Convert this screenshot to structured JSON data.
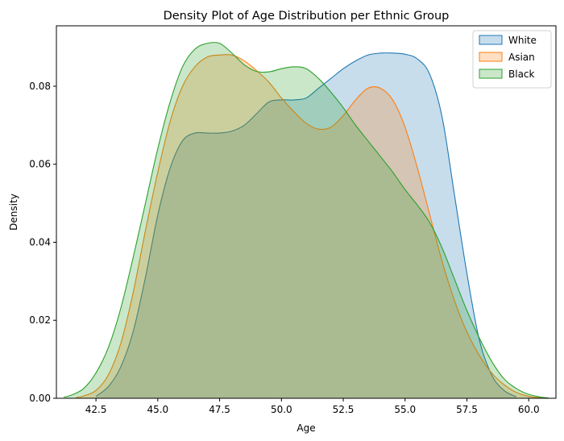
{
  "chart_data": {
    "type": "area",
    "title": "Density Plot of Age Distribution per Ethnic Group",
    "xlabel": "Age",
    "ylabel": "Density",
    "xlim": [
      40.9,
      61.1
    ],
    "ylim": [
      0,
      0.0955
    ],
    "xticks": [
      42.5,
      45.0,
      47.5,
      50.0,
      52.5,
      55.0,
      57.5,
      60.0
    ],
    "xtick_labels": [
      "42.5",
      "45.0",
      "47.5",
      "50.0",
      "52.5",
      "55.0",
      "57.5",
      "60.0"
    ],
    "yticks": [
      0.0,
      0.02,
      0.04,
      0.06,
      0.08
    ],
    "ytick_labels": [
      "0.00",
      "0.02",
      "0.04",
      "0.06",
      "0.08"
    ],
    "grid": false,
    "legend_position": "top-right",
    "series": [
      {
        "name": "White",
        "color": "#1f77b4",
        "x": [
          42.5,
          43.0,
          43.5,
          44.0,
          44.5,
          45.0,
          45.5,
          46.0,
          46.5,
          47.0,
          47.5,
          48.0,
          48.5,
          49.0,
          49.5,
          50.0,
          50.5,
          51.0,
          51.5,
          52.0,
          52.5,
          53.0,
          53.5,
          54.0,
          54.5,
          55.0,
          55.5,
          56.0,
          56.5,
          57.0,
          57.5,
          58.0,
          58.5,
          59.0,
          59.5
        ],
        "y": [
          0.0005,
          0.003,
          0.008,
          0.017,
          0.031,
          0.047,
          0.059,
          0.066,
          0.068,
          0.068,
          0.068,
          0.0685,
          0.07,
          0.073,
          0.076,
          0.0765,
          0.0765,
          0.077,
          0.0795,
          0.082,
          0.0845,
          0.0865,
          0.088,
          0.0885,
          0.0885,
          0.0882,
          0.087,
          0.083,
          0.072,
          0.052,
          0.032,
          0.015,
          0.006,
          0.002,
          0.0004
        ]
      },
      {
        "name": "Asian",
        "color": "#ff7f0e",
        "x": [
          41.7,
          42.0,
          42.5,
          43.0,
          43.5,
          44.0,
          44.5,
          45.0,
          45.5,
          46.0,
          46.5,
          47.0,
          47.5,
          48.0,
          48.5,
          49.0,
          49.5,
          50.0,
          50.5,
          51.0,
          51.5,
          52.0,
          52.5,
          53.0,
          53.5,
          54.0,
          54.5,
          55.0,
          55.5,
          56.0,
          56.5,
          57.0,
          57.5,
          58.0,
          58.5,
          59.0,
          59.5,
          60.0,
          60.5
        ],
        "y": [
          0.0002,
          0.0006,
          0.002,
          0.006,
          0.014,
          0.027,
          0.043,
          0.058,
          0.071,
          0.08,
          0.085,
          0.0875,
          0.088,
          0.088,
          0.0865,
          0.084,
          0.081,
          0.077,
          0.0735,
          0.0705,
          0.069,
          0.0695,
          0.0725,
          0.0765,
          0.0795,
          0.0795,
          0.0765,
          0.0695,
          0.059,
          0.047,
          0.035,
          0.025,
          0.017,
          0.011,
          0.0065,
          0.0035,
          0.0015,
          0.0005,
          0.0001
        ]
      },
      {
        "name": "Black",
        "color": "#2ca02c",
        "x": [
          41.2,
          41.5,
          42.0,
          42.5,
          43.0,
          43.5,
          44.0,
          44.5,
          45.0,
          45.5,
          46.0,
          46.5,
          47.0,
          47.5,
          48.0,
          48.5,
          49.0,
          49.5,
          50.0,
          50.5,
          51.0,
          51.5,
          52.0,
          52.5,
          53.0,
          53.5,
          54.0,
          54.5,
          55.0,
          55.5,
          56.0,
          56.5,
          57.0,
          57.5,
          58.0,
          58.5,
          59.0,
          59.5,
          60.0,
          60.5,
          60.8
        ],
        "y": [
          0.0003,
          0.0008,
          0.0025,
          0.0065,
          0.013,
          0.023,
          0.036,
          0.05,
          0.064,
          0.076,
          0.085,
          0.0895,
          0.091,
          0.091,
          0.0885,
          0.0855,
          0.0838,
          0.0837,
          0.0845,
          0.085,
          0.0845,
          0.082,
          0.0785,
          0.0745,
          0.07,
          0.066,
          0.062,
          0.058,
          0.0535,
          0.0495,
          0.045,
          0.0385,
          0.0305,
          0.0225,
          0.0155,
          0.0095,
          0.005,
          0.0025,
          0.001,
          0.0003,
          0.0001
        ]
      }
    ]
  }
}
